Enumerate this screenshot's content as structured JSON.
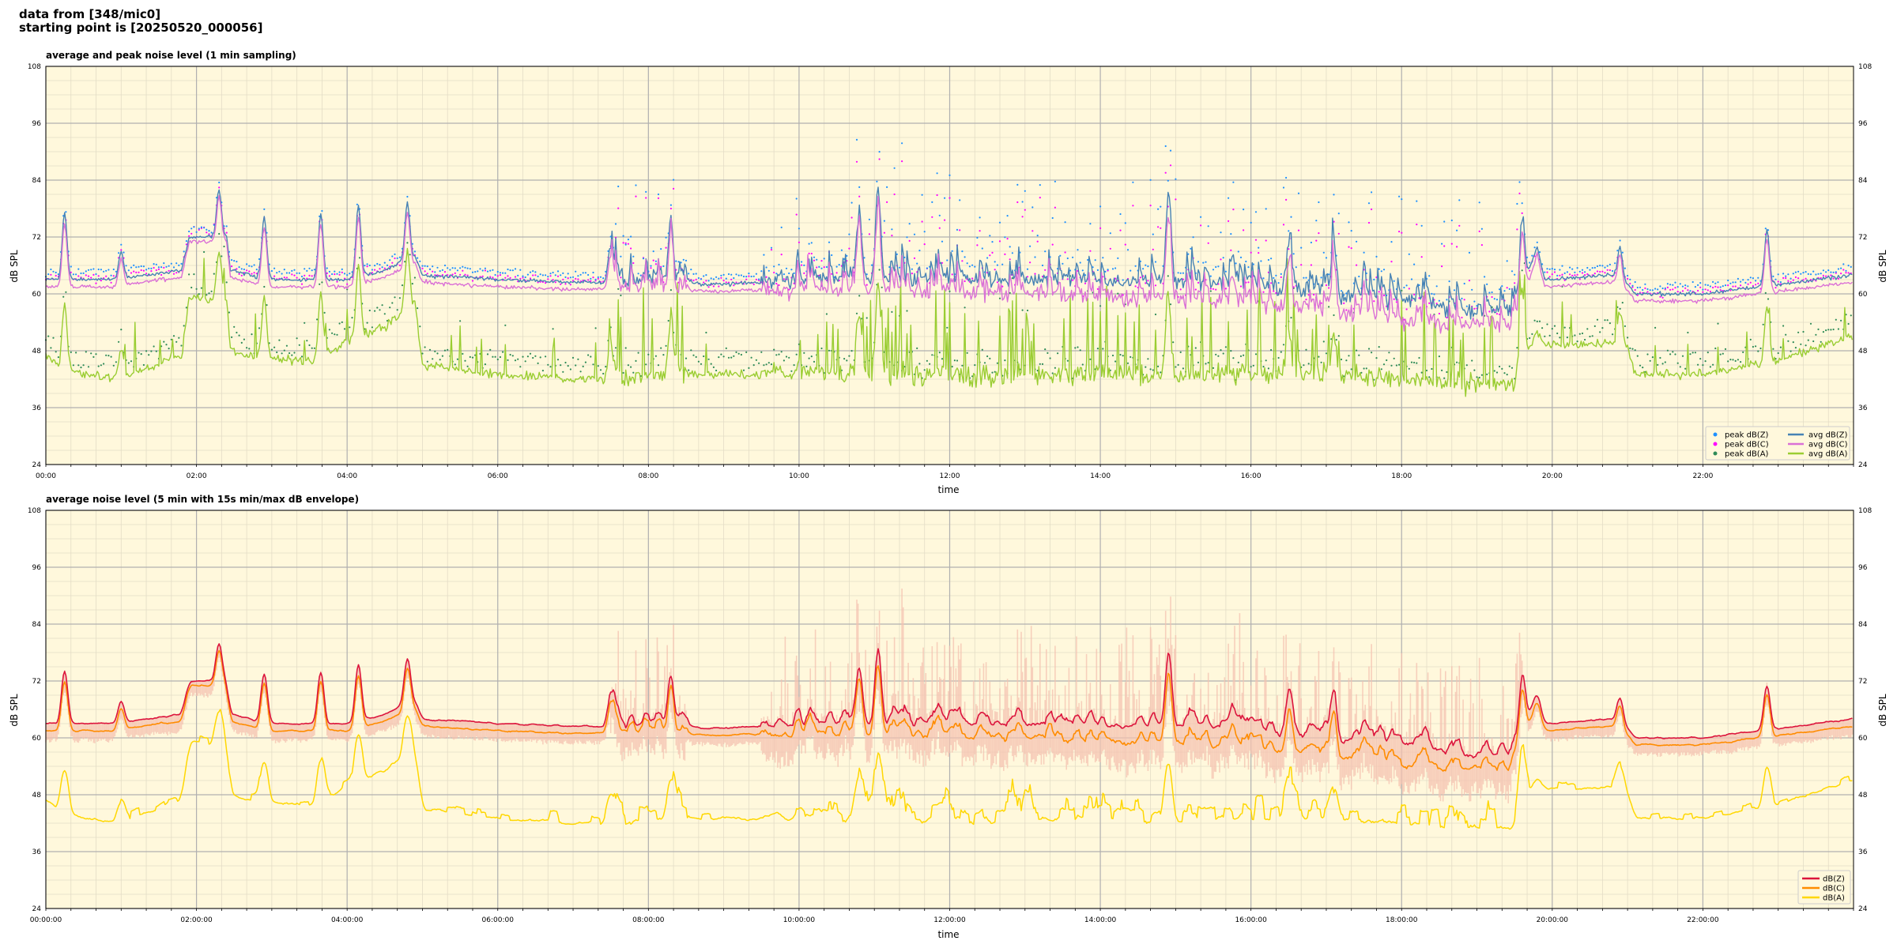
{
  "header": {
    "line1": "data from [348/mic0]",
    "line2": "starting point is [20250520_000056]"
  },
  "colors": {
    "background": "#fff8dc",
    "grid_major": "#b0b0b0",
    "grid_minor": "#e3dcc6",
    "avg_z": "#4682b4",
    "avg_c": "#da70d6",
    "avg_a": "#9acd32",
    "peak_z": "#1e90ff",
    "peak_c": "#ff00ff",
    "peak_a": "#2e8b57",
    "env_z": "#dc143c",
    "env_c": "#ff8c00",
    "env_a": "#ffd700",
    "envelope": "#f4c2b0"
  },
  "chart_data": [
    {
      "type": "line",
      "title": "average and peak noise level (1 min sampling)",
      "xlabel": "time",
      "ylabel": "dB SPL",
      "xlim_hours": [
        0,
        24
      ],
      "ylim": [
        24,
        108
      ],
      "yticks": [
        24,
        36,
        48,
        60,
        72,
        84,
        96,
        108
      ],
      "xtick_labels": [
        "00:00",
        "02:00",
        "04:00",
        "06:00",
        "08:00",
        "10:00",
        "12:00",
        "14:00",
        "16:00",
        "18:00",
        "20:00",
        "22:00"
      ],
      "grid": true,
      "legend_position": "bottom-right",
      "legend": [
        "peak dB(Z)",
        "peak dB(C)",
        "peak dB(A)",
        "avg dB(Z)",
        "avg dB(C)",
        "avg dB(A)"
      ],
      "series_keys": [
        "avg_z",
        "avg_c",
        "avg_a",
        "peak_z",
        "peak_c",
        "peak_a"
      ],
      "baseline": {
        "hours": [
          0,
          0.25,
          0.5,
          0.9,
          1.3,
          1.8,
          1.9,
          2.4,
          2.45,
          3.0,
          3.6,
          4.0,
          4.5,
          4.9,
          5.0,
          6.0,
          7.0,
          7.5,
          8.0,
          9.0,
          9.5,
          10.0,
          11.0,
          12.0,
          13.0,
          14.0,
          15.0,
          16.0,
          17.0,
          18.0,
          19.0,
          19.5,
          19.8,
          19.9,
          20.8,
          21.0,
          21.1,
          22.0,
          23.0,
          24.0
        ],
        "avg_z": [
          63,
          63,
          63,
          63,
          64,
          65,
          72,
          72,
          65,
          63,
          63,
          63,
          65,
          68,
          64,
          63,
          62.5,
          62.5,
          62.5,
          62,
          62.5,
          63,
          63,
          63.5,
          63,
          63,
          62.5,
          61.5,
          60.5,
          58.5,
          56.5,
          56.5,
          70,
          63,
          64,
          62,
          60,
          60,
          62,
          64
        ],
        "avg_c": [
          61.5,
          61.5,
          61.5,
          61.5,
          62.5,
          63.5,
          71,
          71,
          63.5,
          61.5,
          61.5,
          61.5,
          63.5,
          66.5,
          62.5,
          61.5,
          61,
          61,
          61,
          60.5,
          61,
          61,
          60.5,
          60.5,
          60,
          59.5,
          59,
          58,
          56.5,
          54.5,
          53,
          53,
          68.5,
          61.5,
          62.5,
          60.5,
          58.5,
          58.5,
          60.5,
          62.5
        ],
        "avg_a": [
          47,
          44,
          43,
          42,
          44,
          47,
          59,
          59,
          48,
          46,
          46,
          50,
          53,
          58,
          45,
          43,
          42,
          42,
          43,
          43,
          43,
          43,
          43,
          43,
          43,
          43,
          43,
          43,
          43,
          42,
          41,
          41,
          52,
          49,
          50,
          49,
          43,
          43,
          46,
          51
        ]
      },
      "events": [
        {
          "hour": 0.25,
          "amp": 14
        },
        {
          "hour": 1.0,
          "amp": 6
        },
        {
          "hour": 2.3,
          "amp": 10
        },
        {
          "hour": 2.9,
          "amp": 13
        },
        {
          "hour": 3.65,
          "amp": 14
        },
        {
          "hour": 4.15,
          "amp": 15
        },
        {
          "hour": 4.8,
          "amp": 12
        },
        {
          "hour": 7.5,
          "amp": 8
        },
        {
          "hour": 8.3,
          "amp": 14
        },
        {
          "hour": 10.8,
          "amp": 15
        },
        {
          "hour": 11.05,
          "amp": 20
        },
        {
          "hour": 14.9,
          "amp": 18
        },
        {
          "hour": 16.5,
          "amp": 10
        },
        {
          "hour": 17.1,
          "amp": 9
        },
        {
          "hour": 19.6,
          "amp": 16
        },
        {
          "hour": 20.9,
          "amp": 7
        },
        {
          "hour": 22.85,
          "amp": 12
        }
      ],
      "busy_periods_hours": [
        [
          7.5,
          8.5
        ],
        [
          9.5,
          19.6
        ]
      ]
    },
    {
      "type": "area",
      "title": "average noise level (5 min with 15s min/max dB envelope)",
      "xlabel": "time",
      "ylabel": "dB SPL",
      "xlim_hours": [
        0,
        24
      ],
      "ylim": [
        24,
        108
      ],
      "yticks": [
        24,
        36,
        48,
        60,
        72,
        84,
        96,
        108
      ],
      "xtick_labels": [
        "00:00:00",
        "02:00:00",
        "04:00:00",
        "06:00:00",
        "08:00:00",
        "10:00:00",
        "12:00:00",
        "14:00:00",
        "16:00:00",
        "18:00:00",
        "20:00:00",
        "22:00:00"
      ],
      "grid": true,
      "legend_position": "bottom-right",
      "legend": [
        "dB(Z)",
        "dB(C)",
        "dB(A)"
      ],
      "series_keys": [
        "env_z",
        "env_c",
        "env_a"
      ]
    }
  ]
}
